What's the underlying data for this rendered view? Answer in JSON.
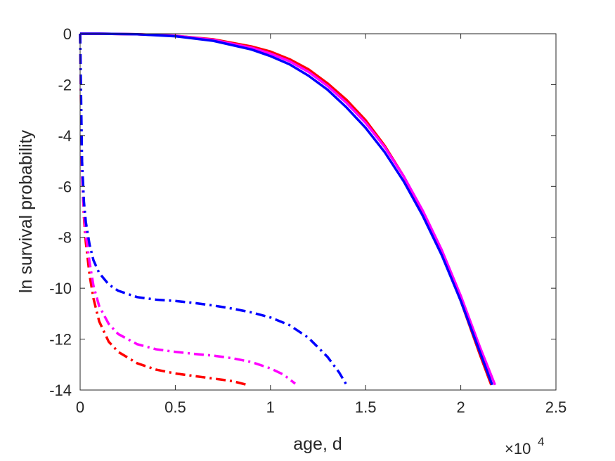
{
  "chart_data": {
    "type": "line",
    "title": "",
    "xlabel": "age, d",
    "ylabel": "ln survival probability",
    "x_multiplier": "×10",
    "x_multiplier_exp": "4",
    "xlim": [
      0,
      25000
    ],
    "ylim": [
      -14,
      0
    ],
    "x_ticks": [
      0,
      5000,
      10000,
      15000,
      20000,
      25000
    ],
    "x_tick_labels": [
      "0",
      "0.5",
      "1",
      "1.5",
      "2",
      "2.5"
    ],
    "y_ticks": [
      0,
      -2,
      -4,
      -6,
      -8,
      -10,
      -12,
      -14
    ],
    "y_tick_labels": [
      "0",
      "-2",
      "-4",
      "-6",
      "-8",
      "-10",
      "-12",
      "-14"
    ],
    "grid": false,
    "legend": "none",
    "series": [
      {
        "color": "#ff0000",
        "style": "solid",
        "x": [
          0,
          1000,
          3000,
          5000,
          7000,
          9000,
          10000,
          11000,
          12000,
          13000,
          14000,
          15000,
          16000,
          17000,
          18000,
          19000,
          20000,
          21000,
          21600
        ],
        "y": [
          0,
          0,
          -0.02,
          -0.08,
          -0.22,
          -0.5,
          -0.7,
          -1.0,
          -1.4,
          -1.95,
          -2.6,
          -3.4,
          -4.4,
          -5.6,
          -7.0,
          -8.6,
          -10.5,
          -12.6,
          -13.8
        ]
      },
      {
        "color": "#ff00ff",
        "style": "solid",
        "x": [
          0,
          1000,
          3000,
          5000,
          7000,
          9000,
          10000,
          11000,
          12000,
          13000,
          14000,
          15000,
          16000,
          17000,
          18000,
          19000,
          20000,
          21000,
          21800
        ],
        "y": [
          0,
          0,
          -0.02,
          -0.08,
          -0.24,
          -0.55,
          -0.78,
          -1.08,
          -1.5,
          -2.05,
          -2.72,
          -3.5,
          -4.45,
          -5.6,
          -6.95,
          -8.5,
          -10.3,
          -12.3,
          -13.8
        ]
      },
      {
        "color": "#0000ff",
        "style": "solid",
        "x": [
          0,
          1000,
          3000,
          5000,
          7000,
          9000,
          10000,
          11000,
          12000,
          13000,
          14000,
          15000,
          16000,
          17000,
          18000,
          19000,
          20000,
          21000,
          21650
        ],
        "y": [
          0,
          0,
          -0.02,
          -0.1,
          -0.28,
          -0.62,
          -0.88,
          -1.2,
          -1.65,
          -2.2,
          -2.9,
          -3.7,
          -4.65,
          -5.8,
          -7.15,
          -8.7,
          -10.5,
          -12.5,
          -13.8
        ]
      },
      {
        "color": "#ff0000",
        "style": "dashdot",
        "x": [
          0,
          50,
          100,
          200,
          300,
          500,
          700,
          1000,
          1500,
          2000,
          3000,
          4000,
          5000,
          6000,
          7000,
          8000,
          8800
        ],
        "y": [
          0,
          -3,
          -5.5,
          -7.2,
          -8.2,
          -9.5,
          -10.4,
          -11.3,
          -12.1,
          -12.5,
          -12.95,
          -13.2,
          -13.35,
          -13.45,
          -13.55,
          -13.65,
          -13.8
        ]
      },
      {
        "color": "#ff00ff",
        "style": "dashdot",
        "x": [
          0,
          50,
          100,
          200,
          300,
          500,
          700,
          1000,
          1500,
          2000,
          3000,
          4000,
          5000,
          6000,
          7000,
          8000,
          9000,
          10000,
          10700,
          11300
        ],
        "y": [
          0,
          -3,
          -5.4,
          -7,
          -7.9,
          -9,
          -9.9,
          -10.7,
          -11.4,
          -11.8,
          -12.2,
          -12.4,
          -12.5,
          -12.58,
          -12.65,
          -12.75,
          -12.9,
          -13.15,
          -13.4,
          -13.75
        ]
      },
      {
        "color": "#0000ff",
        "style": "dashdot",
        "x": [
          0,
          50,
          100,
          200,
          300,
          500,
          700,
          1000,
          1500,
          2000,
          3000,
          4000,
          5000,
          6000,
          7000,
          8000,
          9000,
          10000,
          11000,
          12000,
          13000,
          13600,
          14000
        ],
        "y": [
          0,
          -2.5,
          -5,
          -6.6,
          -7.4,
          -8.3,
          -8.9,
          -9.4,
          -9.85,
          -10.1,
          -10.35,
          -10.45,
          -10.5,
          -10.58,
          -10.68,
          -10.8,
          -10.95,
          -11.15,
          -11.45,
          -11.95,
          -12.7,
          -13.3,
          -13.8
        ]
      }
    ]
  }
}
